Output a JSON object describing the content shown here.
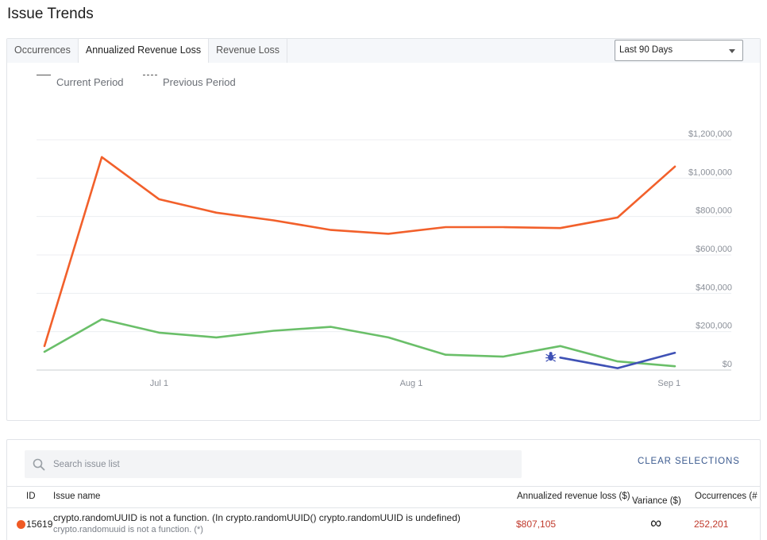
{
  "page": {
    "title": "Issue Trends"
  },
  "tabs": [
    {
      "label": "Occurrences",
      "active": false
    },
    {
      "label": "Annualized Revenue Loss",
      "active": true
    },
    {
      "label": "Revenue Loss",
      "active": false
    }
  ],
  "range_select": {
    "value": "Last 90 Days"
  },
  "legend": {
    "current": "Current Period",
    "previous": "Previous Period"
  },
  "chart_data": {
    "type": "line",
    "x_ticks": [
      "Jul 1",
      "Aug 1",
      "Sep 1"
    ],
    "y_ticks": [
      "$0",
      "$200,000",
      "$400,000",
      "$600,000",
      "$800,000",
      "$1,000,000",
      "$1,200,000"
    ],
    "ylim": [
      0,
      1200000
    ],
    "grid": true,
    "series": [
      {
        "color": "#f2602b",
        "values": [
          125000,
          1110000,
          890000,
          820000,
          780000,
          730000,
          710000,
          745000,
          745000,
          740000,
          795000,
          1060000
        ]
      },
      {
        "color": "#6abf69",
        "values": [
          95000,
          265000,
          195000,
          170000,
          205000,
          225000,
          170000,
          80000,
          70000,
          125000,
          45000,
          20000
        ]
      },
      {
        "color": "#3f51b5",
        "start_index": 9,
        "values": [
          65000,
          10000,
          90000
        ]
      }
    ],
    "annotation": {
      "icon": "bug-icon",
      "index": 9,
      "value": 70000
    }
  },
  "search": {
    "placeholder": "Search issue list",
    "value": ""
  },
  "clear_selections": "CLEAR SELECTIONS",
  "table": {
    "columns": {
      "id": "ID",
      "name": "Issue name",
      "loss": "Annualized revenue loss ($)",
      "variance": "Variance ($)",
      "sort": "↓",
      "occurrences": "Occurrences (#"
    },
    "rows": [
      {
        "id": "15619",
        "name": "crypto.randomUUID is not a function. (In crypto.randomUUID() crypto.randomUUID is undefined)",
        "sub": "crypto.randomuuid is not a function. (*)",
        "loss": "$807,105",
        "variance": "∞",
        "occurrences": "252,201",
        "severity_color": "#f05a24"
      }
    ]
  }
}
